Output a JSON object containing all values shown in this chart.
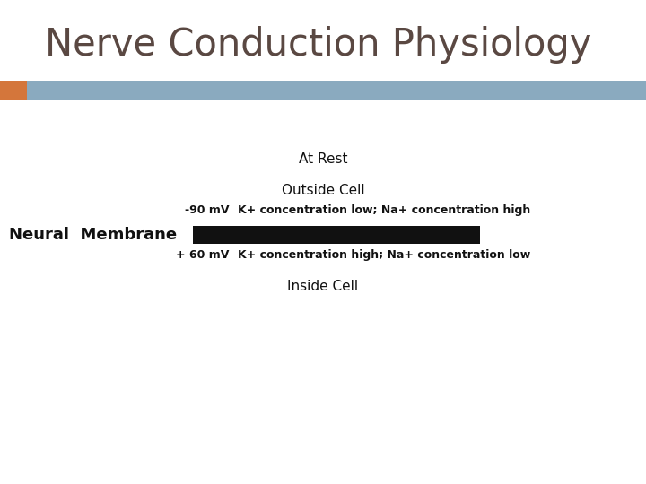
{
  "title": "Nerve Conduction Physiology",
  "title_color": "#5a4842",
  "title_fontsize": 30,
  "header_bar_color": "#8aaabf",
  "header_orange_color": "#d4763b",
  "at_rest_label": "At Rest",
  "outside_cell_label": "Outside Cell",
  "voltage_outside": "-90 mV",
  "conc_outside": "K+ concentration low; Na+ concentration high",
  "neural_membrane_label": "Neural  Membrane",
  "membrane_bar_color": "#111111",
  "voltage_inside": "+ 60 mV",
  "conc_inside": "K+ concentration high; Na+ concentration low",
  "inside_cell_label": "Inside Cell",
  "bg_color": "#ffffff",
  "text_color": "#111111"
}
